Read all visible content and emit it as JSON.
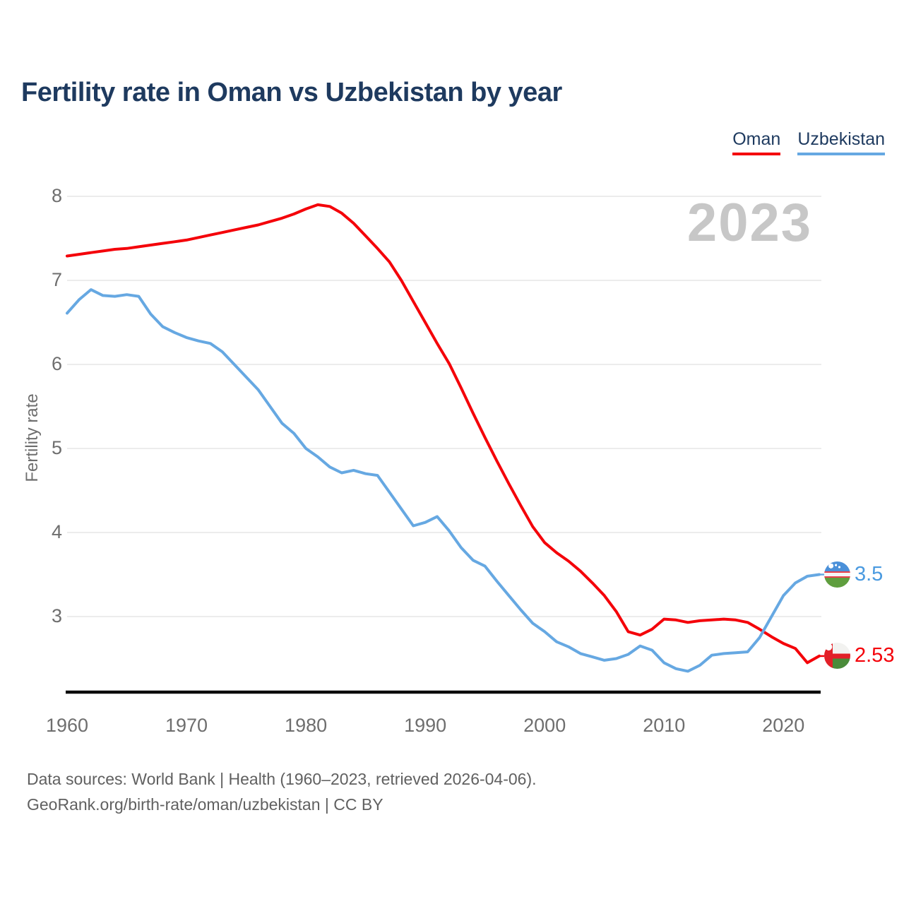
{
  "title": "Fertility rate in Oman vs Uzbekistan by year",
  "watermark": "2023",
  "y_axis_label": "Fertility rate",
  "legend": {
    "items": [
      {
        "label": "Oman",
        "color": "#f40009"
      },
      {
        "label": "Uzbekistan",
        "color": "#66a8e2"
      }
    ]
  },
  "end_labels": {
    "oman": "2.53",
    "uzbekistan": "3.5"
  },
  "footer": {
    "line1": "Data sources: World Bank | Health (1960–2023, retrieved 2026-04-06).",
    "line2": "GeoRank.org/birth-rate/oman/uzbekistan | CC BY"
  },
  "colors": {
    "oman_line": "#f40009",
    "uzbekistan_line": "#66a8e2",
    "oman_value_text": "#f40009",
    "uzbekistan_value_text": "#4a9ae0",
    "title_text": "#1e3a5f",
    "tick_text": "#6e6e6e",
    "gridline": "#ececec",
    "axis_line": "#0a0a0a",
    "watermark_text": "#c7c7c7"
  },
  "chart_data": {
    "type": "line",
    "title": "Fertility rate in Oman vs Uzbekistan by year",
    "xlabel": "",
    "ylabel": "Fertility rate",
    "x_ticks": [
      1960,
      1970,
      1980,
      1990,
      2000,
      2010,
      2020
    ],
    "y_ticks": [
      8,
      7,
      6,
      5,
      4,
      3
    ],
    "ylim": [
      2.1,
      8.1
    ],
    "grid": "horizontal",
    "legend_position": "top-right",
    "x": [
      1960,
      1961,
      1962,
      1963,
      1964,
      1965,
      1966,
      1967,
      1968,
      1969,
      1970,
      1971,
      1972,
      1973,
      1974,
      1975,
      1976,
      1977,
      1978,
      1979,
      1980,
      1981,
      1982,
      1983,
      1984,
      1985,
      1986,
      1987,
      1988,
      1989,
      1990,
      1991,
      1992,
      1993,
      1994,
      1995,
      1996,
      1997,
      1998,
      1999,
      2000,
      2001,
      2002,
      2003,
      2004,
      2005,
      2006,
      2007,
      2008,
      2009,
      2010,
      2011,
      2012,
      2013,
      2014,
      2015,
      2016,
      2017,
      2018,
      2019,
      2020,
      2021,
      2022,
      2023
    ],
    "series": [
      {
        "name": "Oman",
        "color": "#f40009",
        "end_value": 2.53,
        "values": [
          7.29,
          7.31,
          7.33,
          7.35,
          7.37,
          7.38,
          7.4,
          7.42,
          7.44,
          7.46,
          7.48,
          7.51,
          7.54,
          7.57,
          7.6,
          7.63,
          7.66,
          7.7,
          7.74,
          7.79,
          7.85,
          7.9,
          7.88,
          7.8,
          7.68,
          7.53,
          7.38,
          7.22,
          7.0,
          6.75,
          6.5,
          6.25,
          6.01,
          5.72,
          5.42,
          5.13,
          4.85,
          4.58,
          4.32,
          4.07,
          3.88,
          3.76,
          3.66,
          3.54,
          3.4,
          3.25,
          3.06,
          2.82,
          2.78,
          2.85,
          2.97,
          2.96,
          2.93,
          2.95,
          2.96,
          2.97,
          2.96,
          2.93,
          2.85,
          2.76,
          2.68,
          2.62,
          2.45,
          2.53
        ]
      },
      {
        "name": "Uzbekistan",
        "color": "#66a8e2",
        "end_value": 3.5,
        "values": [
          6.61,
          6.77,
          6.89,
          6.82,
          6.81,
          6.83,
          6.81,
          6.6,
          6.45,
          6.38,
          6.32,
          6.28,
          6.25,
          6.15,
          6.0,
          5.85,
          5.7,
          5.5,
          5.3,
          5.18,
          5.0,
          4.9,
          4.78,
          4.71,
          4.74,
          4.7,
          4.68,
          4.48,
          4.28,
          4.08,
          4.12,
          4.19,
          4.02,
          3.82,
          3.67,
          3.6,
          3.42,
          3.25,
          3.08,
          2.92,
          2.82,
          2.7,
          2.64,
          2.56,
          2.52,
          2.48,
          2.5,
          2.55,
          2.65,
          2.6,
          2.45,
          2.38,
          2.35,
          2.42,
          2.54,
          2.56,
          2.57,
          2.58,
          2.75,
          3.0,
          3.25,
          3.4,
          3.48,
          3.5
        ]
      }
    ]
  }
}
